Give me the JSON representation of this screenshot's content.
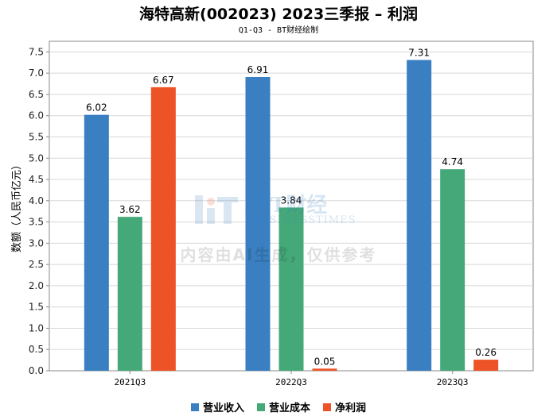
{
  "title": "海特高新(002023) 2023三季报 – 利润",
  "subtitle": "Q1-Q3 - BT财经绘制",
  "watermark": {
    "logo_text": "BT财经",
    "logo_sub": "BUSINESSTIMES",
    "notice": "内容由AI生成，仅供参考"
  },
  "chart_data": {
    "type": "bar",
    "title": "海特高新(002023) 2023三季报 – 利润",
    "subtitle": "Q1-Q3 - BT财经绘制",
    "xlabel": "",
    "ylabel": "数额（人民币亿元）",
    "ylim": [
      0,
      7.75
    ],
    "yticks": [
      "0.0",
      "0.5",
      "1.0",
      "1.5",
      "2.0",
      "2.5",
      "3.0",
      "3.5",
      "4.0",
      "4.5",
      "5.0",
      "5.5",
      "6.0",
      "6.5",
      "7.0",
      "7.5"
    ],
    "categories": [
      "2021Q3",
      "2022Q3",
      "2023Q3"
    ],
    "series": [
      {
        "name": "营业收入",
        "values": [
          6.02,
          6.91,
          7.31
        ],
        "labels": [
          "6.02",
          "6.91",
          "7.31"
        ],
        "color": "#3a7fc1"
      },
      {
        "name": "营业成本",
        "values": [
          3.62,
          3.84,
          4.74
        ],
        "labels": [
          "3.62",
          "3.84",
          "4.74"
        ],
        "color": "#45a878"
      },
      {
        "name": "净利润",
        "values": [
          6.67,
          0.05,
          0.26
        ],
        "labels": [
          "6.67",
          "0.05",
          "0.26"
        ],
        "color": "#ee5327"
      }
    ],
    "grid": true,
    "legend_position": "bottom"
  }
}
